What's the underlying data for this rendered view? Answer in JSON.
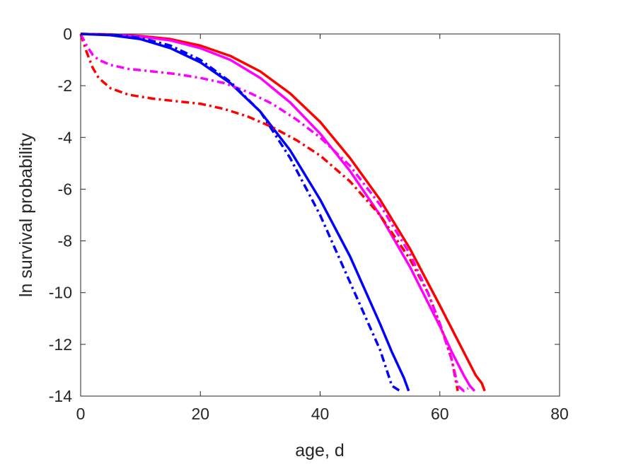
{
  "chart_data": {
    "type": "line",
    "title": "",
    "xlabel": "age, d",
    "ylabel": "ln survival probability",
    "xlim": [
      0,
      80
    ],
    "ylim": [
      -14,
      0
    ],
    "xticks": [
      0,
      20,
      40,
      60,
      80
    ],
    "yticks": [
      0,
      -2,
      -4,
      -6,
      -8,
      -10,
      -12,
      -14
    ],
    "grid": false,
    "legend": "none",
    "series": [
      {
        "color": "#ff0000",
        "style": "solid",
        "x": [
          0,
          5,
          10,
          15,
          20,
          25,
          30,
          35,
          40,
          45,
          50,
          55,
          60,
          62,
          64,
          66,
          67,
          67.5
        ],
        "y": [
          0,
          -0.02,
          -0.08,
          -0.2,
          -0.45,
          -0.85,
          -1.45,
          -2.3,
          -3.4,
          -4.8,
          -6.4,
          -8.3,
          -10.5,
          -11.4,
          -12.3,
          -13.2,
          -13.5,
          -13.8
        ]
      },
      {
        "color": "#ff00ff",
        "style": "solid",
        "x": [
          0,
          5,
          10,
          15,
          20,
          25,
          30,
          35,
          40,
          45,
          50,
          55,
          60,
          62,
          64,
          65,
          65.8
        ],
        "y": [
          0,
          -0.02,
          -0.1,
          -0.25,
          -0.55,
          -1.0,
          -1.7,
          -2.65,
          -3.85,
          -5.3,
          -7.0,
          -9.0,
          -11.3,
          -12.3,
          -13.2,
          -13.6,
          -13.8
        ]
      },
      {
        "color": "#0000ff",
        "style": "solid",
        "x": [
          0,
          5,
          10,
          15,
          20,
          25,
          30,
          35,
          40,
          45,
          50,
          52,
          54,
          54.8
        ],
        "y": [
          0,
          -0.05,
          -0.2,
          -0.55,
          -1.1,
          -1.9,
          -3.0,
          -4.5,
          -6.4,
          -8.6,
          -11.2,
          -12.3,
          -13.3,
          -13.8
        ]
      },
      {
        "color": "#ff0000",
        "style": "dashdot",
        "x": [
          0,
          1,
          2,
          3,
          5,
          8,
          12,
          16,
          20,
          24,
          28,
          32,
          36,
          40,
          45,
          50,
          55,
          58,
          60,
          62,
          63
        ],
        "y": [
          0,
          -0.7,
          -1.3,
          -1.7,
          -2.1,
          -2.35,
          -2.5,
          -2.6,
          -2.7,
          -2.9,
          -3.2,
          -3.6,
          -4.1,
          -4.7,
          -5.7,
          -7.0,
          -8.7,
          -10.0,
          -11.2,
          -12.6,
          -13.8
        ]
      },
      {
        "color": "#ff00ff",
        "style": "dashdot",
        "x": [
          0,
          1,
          2,
          3,
          5,
          8,
          12,
          16,
          20,
          24,
          28,
          32,
          36,
          40,
          45,
          50,
          55,
          58,
          60,
          62,
          63,
          64,
          64.7
        ],
        "y": [
          0,
          -0.45,
          -0.8,
          -1.0,
          -1.2,
          -1.35,
          -1.45,
          -1.55,
          -1.7,
          -1.9,
          -2.25,
          -2.7,
          -3.3,
          -4.0,
          -5.1,
          -6.6,
          -8.5,
          -10.0,
          -11.2,
          -12.6,
          -13.6,
          -13.8,
          -13.7
        ]
      },
      {
        "color": "#0000ff",
        "style": "dashdot",
        "x": [
          0,
          5,
          10,
          15,
          20,
          25,
          30,
          35,
          40,
          45,
          50,
          52,
          53,
          53.5
        ],
        "y": [
          0,
          -0.03,
          -0.15,
          -0.45,
          -1.0,
          -1.85,
          -3.0,
          -4.8,
          -7.0,
          -9.6,
          -12.2,
          -13.6,
          -13.75,
          -13.8
        ]
      }
    ]
  }
}
